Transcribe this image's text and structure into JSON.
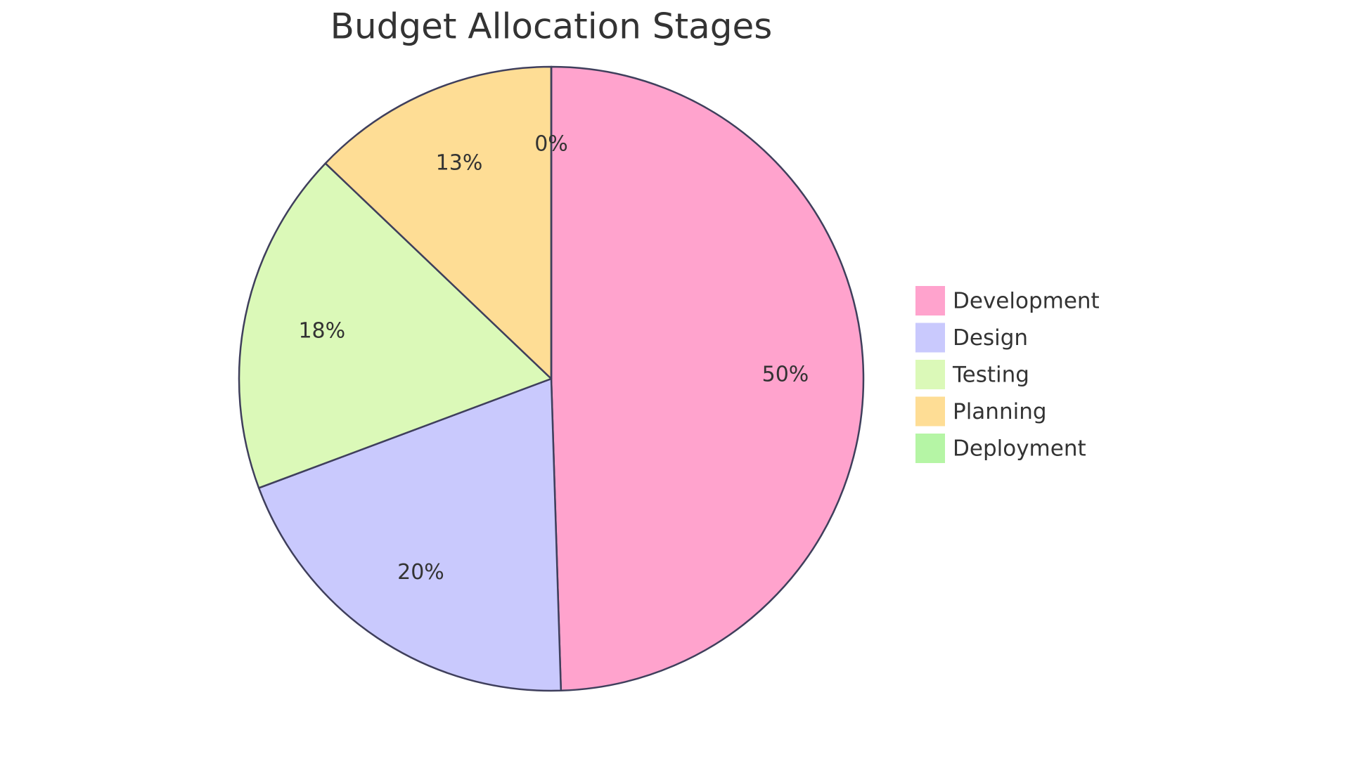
{
  "chart_data": {
    "type": "pie",
    "title": "Budget Allocation Stages",
    "categories": [
      "Development",
      "Design",
      "Testing",
      "Planning",
      "Deployment"
    ],
    "values": [
      50,
      20,
      18,
      13,
      0
    ],
    "value_labels": [
      "50%",
      "20%",
      "18%",
      "13%",
      "0%"
    ],
    "colors": [
      "#ffa3cd",
      "#c9c9fd",
      "#dbf9b8",
      "#fedd95",
      "#b5f5a5"
    ],
    "legend": "right"
  }
}
